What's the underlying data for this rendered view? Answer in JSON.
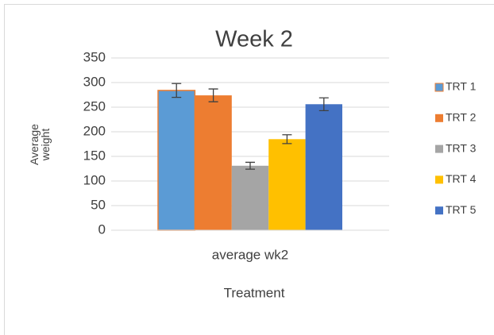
{
  "chart_data": {
    "type": "bar",
    "title": "Week 2",
    "x_label": "Treatment",
    "y_label": "Average weight",
    "categories": [
      "average wk2"
    ],
    "series": [
      {
        "name": "TRT 1",
        "color": "#5b9bd5",
        "edge": "#ed7d31",
        "values": [
          284
        ],
        "errors": [
          14
        ]
      },
      {
        "name": "TRT 2",
        "color": "#ed7d31",
        "values": [
          274
        ],
        "errors": [
          13
        ]
      },
      {
        "name": "TRT 3",
        "color": "#a5a5a5",
        "values": [
          131
        ],
        "errors": [
          7
        ]
      },
      {
        "name": "TRT 4",
        "color": "#ffc000",
        "values": [
          185
        ],
        "errors": [
          9
        ]
      },
      {
        "name": "TRT 5",
        "color": "#4472c4",
        "values": [
          256
        ],
        "errors": [
          13
        ]
      }
    ],
    "ylim": [
      0,
      350
    ],
    "yticks": [
      0,
      50,
      100,
      150,
      200,
      250,
      300,
      350
    ],
    "grid": true,
    "legend": "right"
  }
}
